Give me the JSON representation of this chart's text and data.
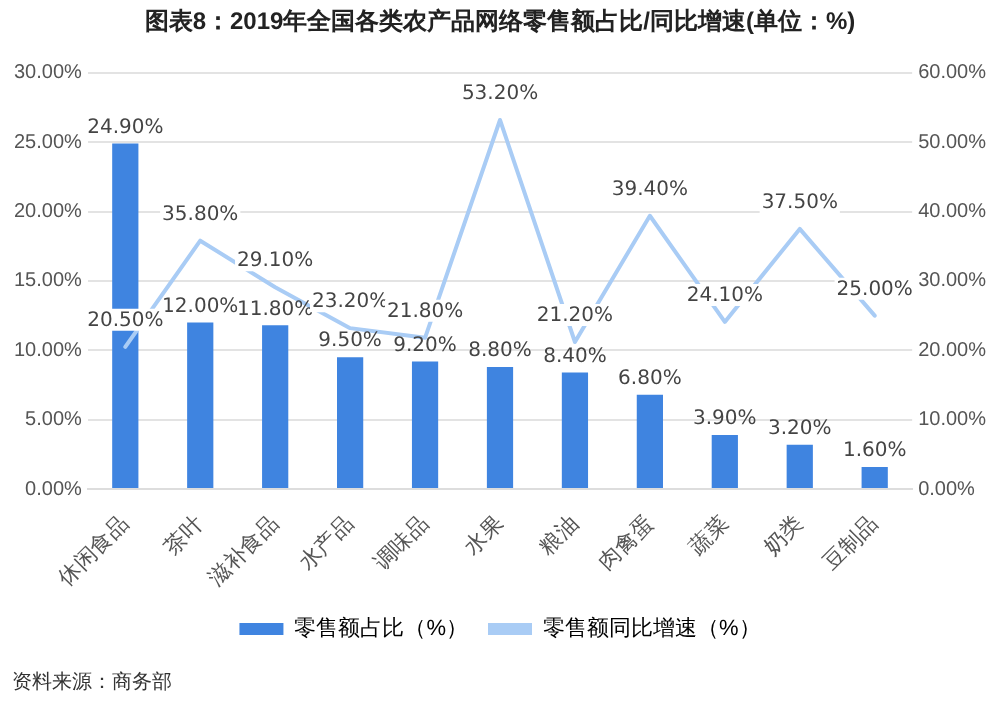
{
  "chart_data": {
    "type": "bar",
    "title": "图表8：2019年全国各类农产品网络零售额占比/同比增速(单位：%)",
    "categories": [
      "休闲食品",
      "茶叶",
      "滋补食品",
      "水产品",
      "调味品",
      "水果",
      "粮油",
      "肉禽蛋",
      "蔬菜",
      "奶类",
      "豆制品"
    ],
    "series": [
      {
        "name": "零售额占比（%）",
        "color": "#3f84e0",
        "values": [
          24.9,
          12.0,
          11.8,
          9.5,
          9.2,
          8.8,
          8.4,
          6.8,
          3.9,
          3.2,
          1.6
        ],
        "value_labels": [
          "24.90%",
          "12.00%",
          "11.80%",
          "9.50%",
          "9.20%",
          "8.80%",
          "8.40%",
          "6.80%",
          "3.90%",
          "3.20%",
          "1.60%"
        ]
      },
      {
        "name": "零售额同比增速（%）",
        "type": "line",
        "axis": "y2",
        "color": "#a9ccf5",
        "values": [
          20.5,
          35.8,
          29.1,
          23.2,
          21.8,
          53.2,
          21.2,
          39.4,
          24.1,
          37.5,
          25.0
        ],
        "value_labels": [
          "20.50%",
          "35.80%",
          "29.10%",
          "23.20%",
          "21.80%",
          "53.20%",
          "21.20%",
          "39.40%",
          "24.10%",
          "37.50%",
          "25.00%"
        ]
      }
    ],
    "ylim": [
      0,
      30
    ],
    "yticks": [
      {
        "value": 0,
        "label": "0.00%"
      },
      {
        "value": 5,
        "label": "5.00%"
      },
      {
        "value": 10,
        "label": "10.00%"
      },
      {
        "value": 15,
        "label": "15.00%"
      },
      {
        "value": 20,
        "label": "20.00%"
      },
      {
        "value": 25,
        "label": "25.00%"
      },
      {
        "value": 30,
        "label": "30.00%"
      }
    ],
    "y2lim": [
      0,
      60
    ],
    "y2ticks": [
      {
        "value": 0,
        "label": "0.00%"
      },
      {
        "value": 10,
        "label": "10.00%"
      },
      {
        "value": 20,
        "label": "20.00%"
      },
      {
        "value": 30,
        "label": "30.00%"
      },
      {
        "value": 40,
        "label": "40.00%"
      },
      {
        "value": 50,
        "label": "50.00%"
      },
      {
        "value": 60,
        "label": "60.00%"
      }
    ],
    "grid": "y",
    "legend": "bottom",
    "marker": "none",
    "line_style": "solid",
    "annotations": [
      "资料来源：商务部"
    ]
  }
}
